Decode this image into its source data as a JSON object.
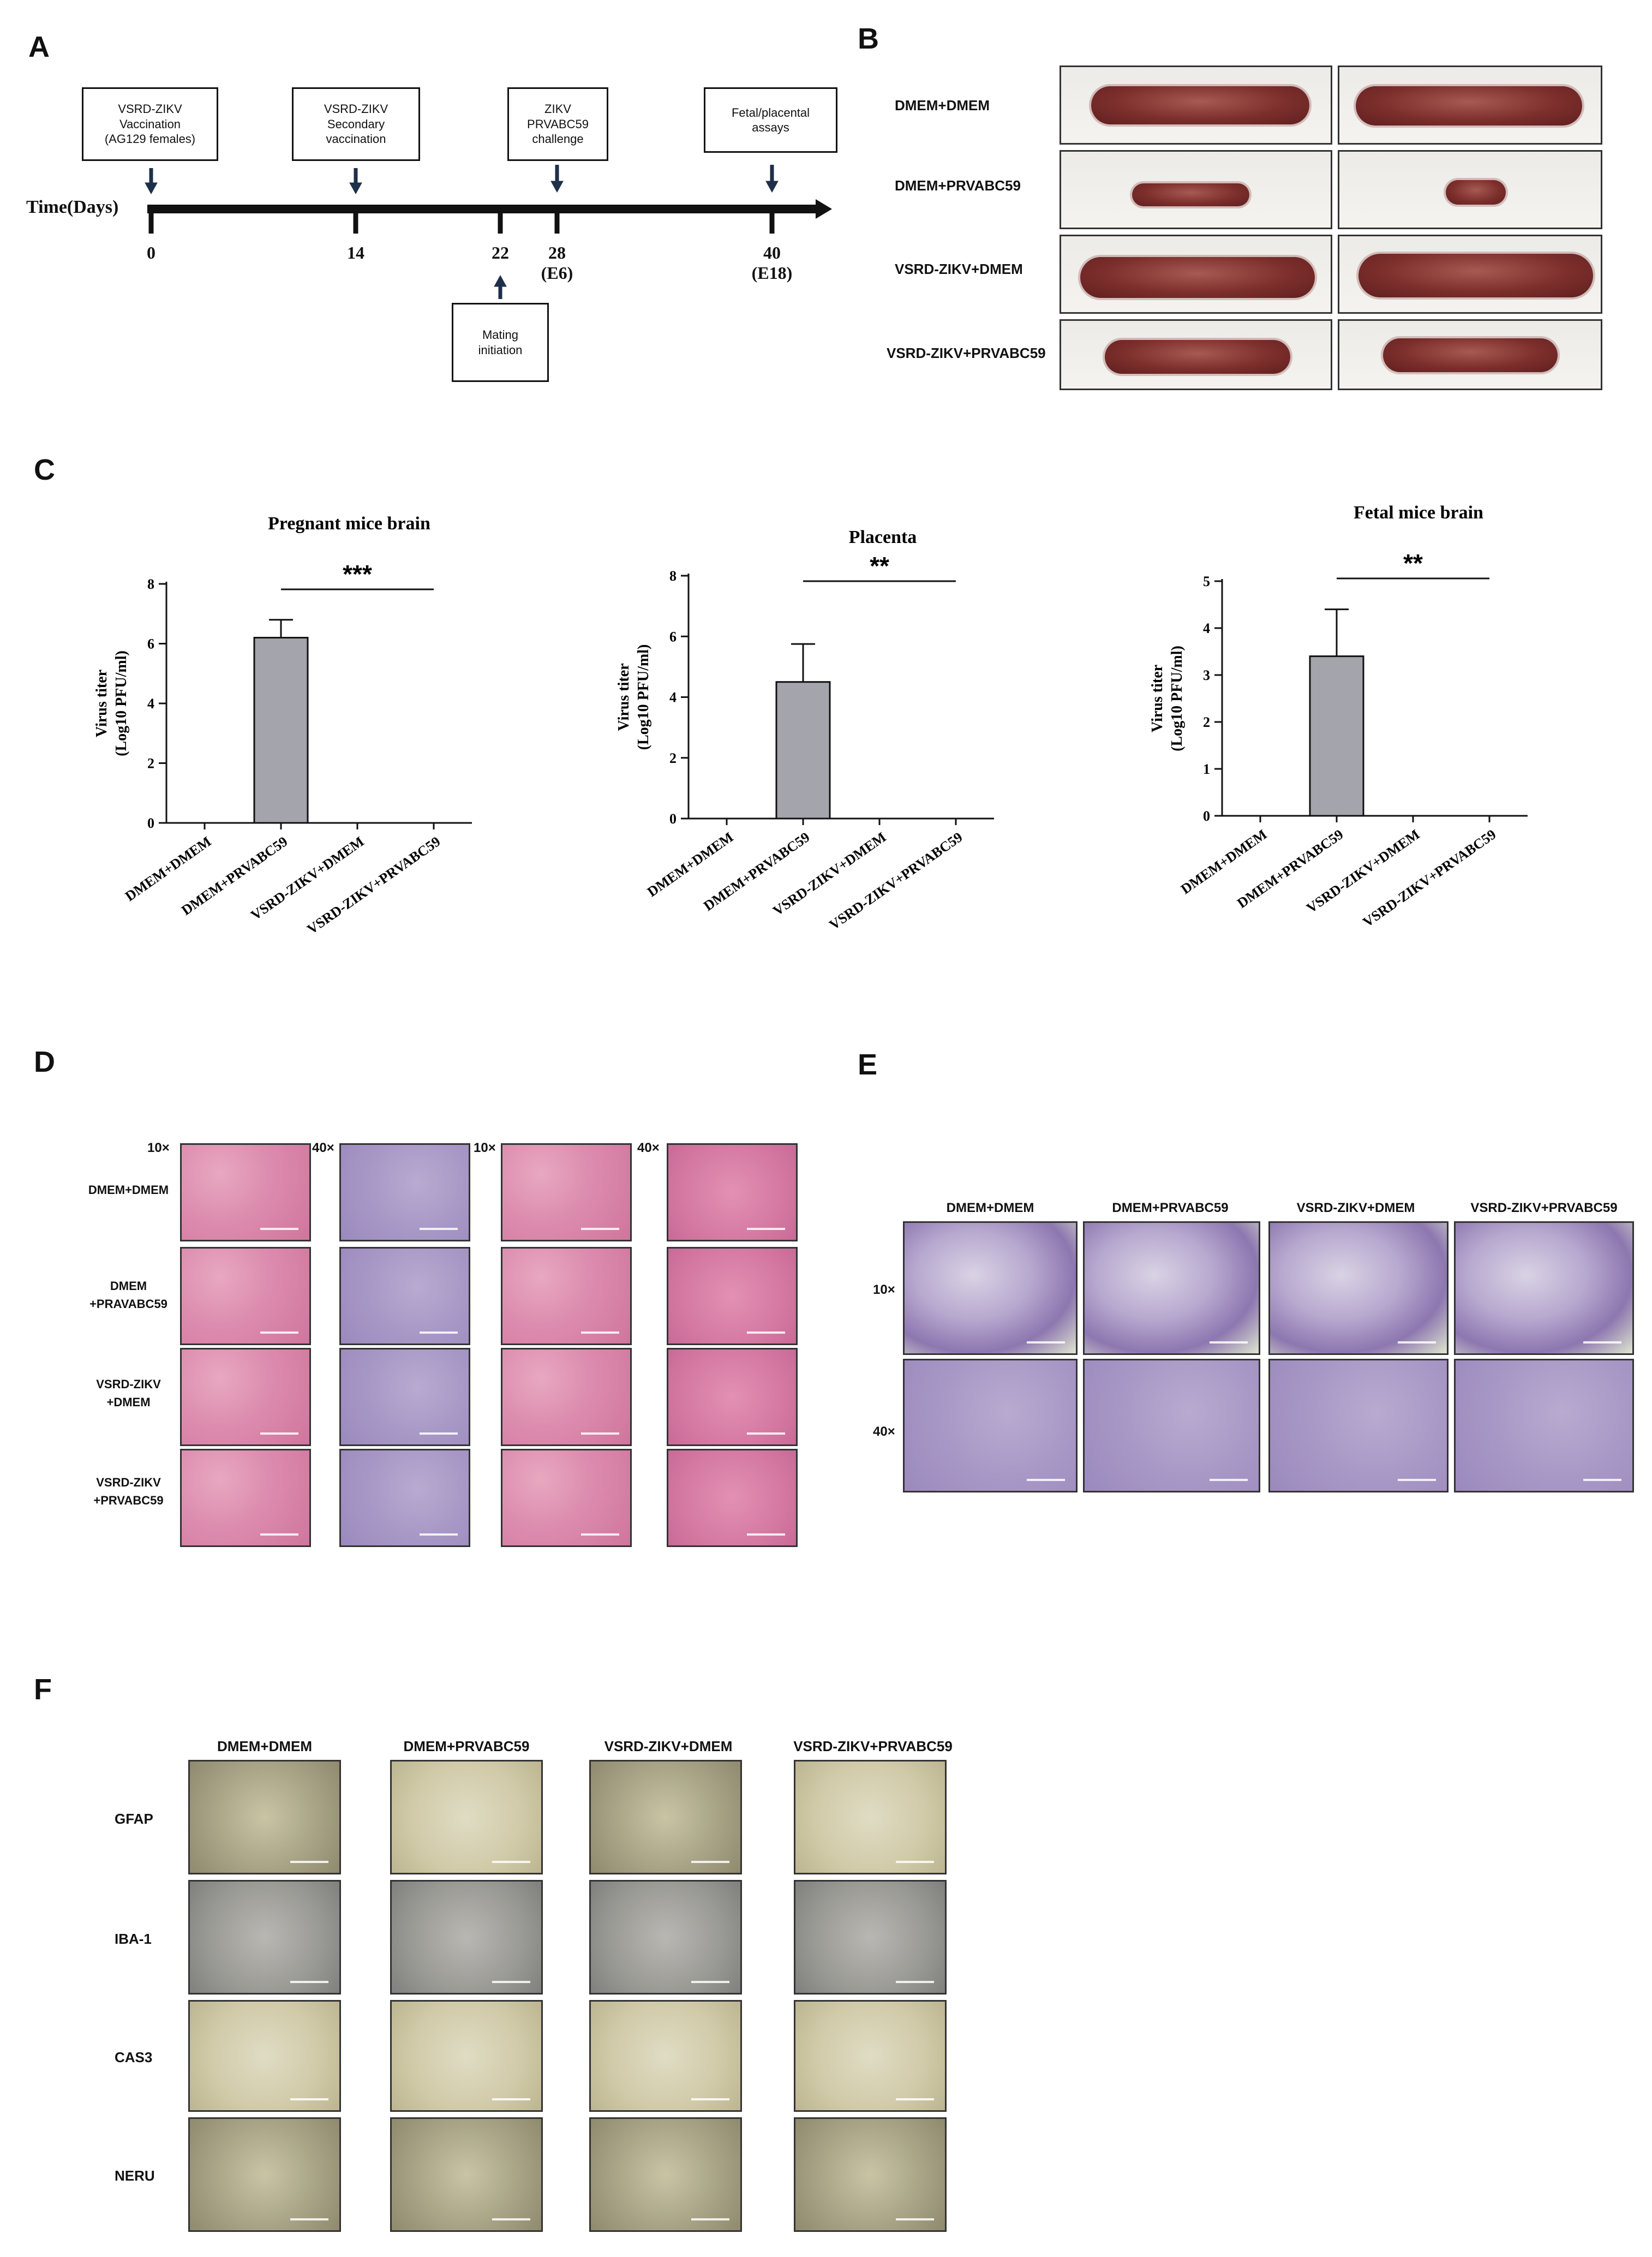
{
  "panels": {
    "a": "A",
    "b": "B",
    "c": "C",
    "d": "D",
    "e": "E",
    "f": "F"
  },
  "timeline": {
    "axis_label": "Time(Days)",
    "boxes": [
      {
        "text": "VSRD-ZIKV\nVaccination\n(AG129 females)"
      },
      {
        "text": "VSRD-ZIKV\nSecondary\nvaccination"
      },
      {
        "text": "ZIKV\nPRVABC59\nchallenge"
      },
      {
        "text": "Fetal/placental\nassays"
      },
      {
        "text": "Mating\ninitiation"
      }
    ],
    "ticks": [
      "0",
      "14",
      "22",
      "28\n(E6)",
      "40\n(E18)"
    ]
  },
  "panel_b": {
    "rows": [
      "DMEM+DMEM",
      "DMEM+PRVABC59",
      "VSRD-ZIKV+DMEM",
      "VSRD-ZIKV+PRVABC59"
    ]
  },
  "chart_data": [
    {
      "type": "bar",
      "title": "Pregnant mice brain",
      "ylabel": "Virus titer\n(Log10 PFU/ml)",
      "categories": [
        "DMEM+DMEM",
        "DMEM+PRVABC59",
        "VSRD-ZIKV+DMEM",
        "VSRD-ZIKV+PRVABC59"
      ],
      "values": [
        0,
        6.2,
        0,
        0
      ],
      "errors": [
        0,
        0.6,
        0,
        0
      ],
      "ylim": [
        0,
        8
      ],
      "yticks": [
        0,
        2,
        4,
        6,
        8
      ],
      "significance": "***",
      "grid": false
    },
    {
      "type": "bar",
      "title": "Placenta",
      "ylabel": "Virus titer\n(Log10 PFU/ml)",
      "categories": [
        "DMEM+DMEM",
        "DMEM+PRVABC59",
        "VSRD-ZIKV+DMEM",
        "VSRD-ZIKV+PRVABC59"
      ],
      "values": [
        0,
        4.5,
        0,
        0
      ],
      "errors": [
        0,
        1.25,
        0,
        0
      ],
      "ylim": [
        0,
        8
      ],
      "yticks": [
        0,
        2,
        4,
        6,
        8
      ],
      "significance": "**",
      "grid": false
    },
    {
      "type": "bar",
      "title": "Fetal mice brain",
      "ylabel": "Virus titer\n(Log10 PFU/ml)",
      "categories": [
        "DMEM+DMEM",
        "DMEM+PRVABC59",
        "VSRD-ZIKV+DMEM",
        "VSRD-ZIKV+PRVABC59"
      ],
      "values": [
        0,
        3.4,
        0,
        0
      ],
      "errors": [
        0,
        1.0,
        0,
        0
      ],
      "ylim": [
        0,
        5
      ],
      "yticks": [
        0,
        1,
        2,
        3,
        4,
        5
      ],
      "significance": "**",
      "grid": false
    }
  ],
  "panel_d": {
    "mags": [
      "10×",
      "40×",
      "10×",
      "40×"
    ],
    "rows": [
      "DMEM+DMEM",
      "DMEM\n+PRAVABC59",
      "VSRD-ZIKV\n+DMEM",
      "VSRD-ZIKV\n+PRVABC59"
    ]
  },
  "panel_e": {
    "cols": [
      "DMEM+DMEM",
      "DMEM+PRVABC59",
      "VSRD-ZIKV+DMEM",
      "VSRD-ZIKV+PRVABC59"
    ],
    "mags": [
      "10×",
      "40×"
    ]
  },
  "panel_f": {
    "cols": [
      "DMEM+DMEM",
      "DMEM+PRVABC59",
      "VSRD-ZIKV+DMEM",
      "VSRD-ZIKV+PRVABC59"
    ],
    "rows": [
      "GFAP",
      "IBA-1",
      "CAS3",
      "NERU"
    ]
  },
  "colors": {
    "bar": "#a4a4ac",
    "axis": "#111111"
  }
}
